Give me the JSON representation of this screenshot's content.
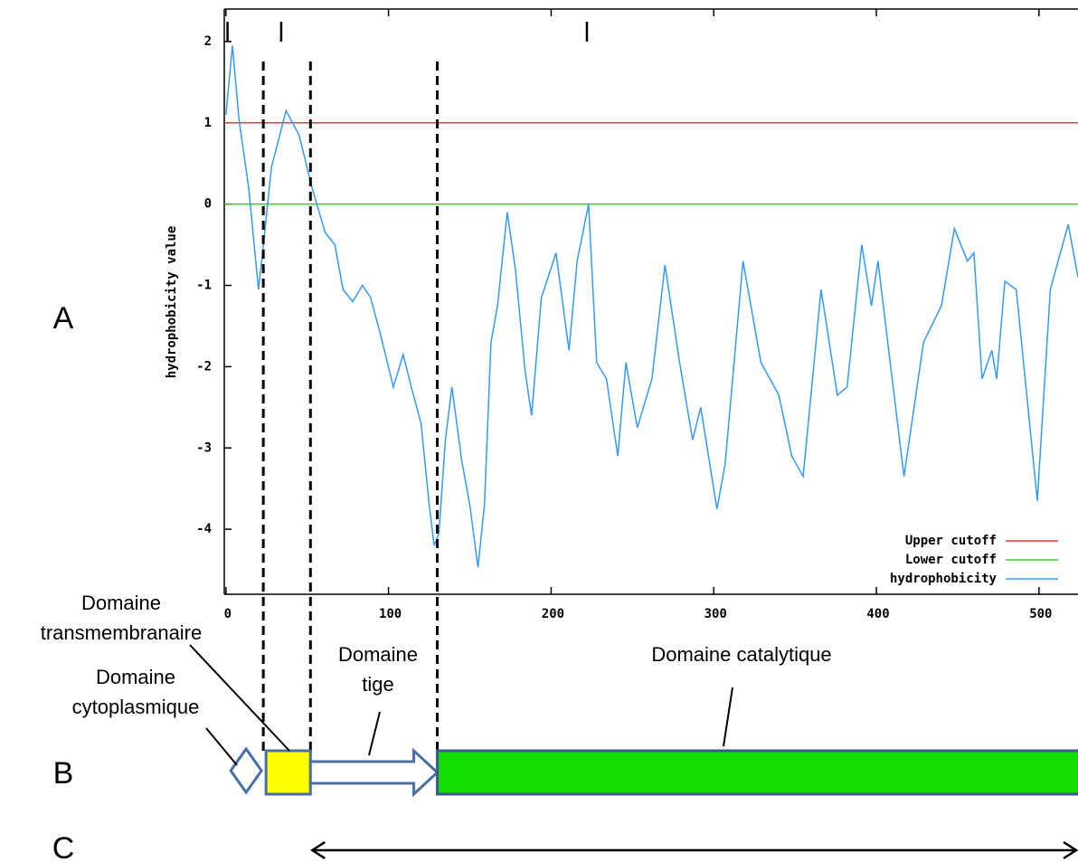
{
  "chart_data": {
    "type": "line",
    "ylabel": "hydrophobicity value",
    "x": [
      0,
      4,
      8,
      14,
      20,
      22,
      28,
      37,
      45,
      53,
      61,
      67,
      72,
      78,
      84,
      89,
      95,
      103,
      109,
      114,
      120,
      125,
      128,
      131,
      135,
      139,
      145,
      150,
      155,
      159,
      163,
      167,
      173,
      178,
      184,
      188,
      194,
      203,
      211,
      216,
      223,
      228,
      234,
      241,
      246,
      253,
      262,
      270,
      279,
      287,
      292,
      302,
      307,
      318,
      329,
      340,
      348,
      355,
      366,
      376,
      382,
      391,
      397,
      401,
      407,
      417,
      429,
      440,
      448,
      456,
      460,
      465,
      471,
      474,
      479,
      486,
      499,
      507,
      518,
      524
    ],
    "series": [
      {
        "name": "hydrophobicity",
        "color": "#3399ff",
        "values": [
          1.1,
          1.95,
          1.05,
          0.2,
          -1.05,
          -0.7,
          0.45,
          1.15,
          0.85,
          0.2,
          -0.35,
          -0.5,
          -1.05,
          -1.2,
          -1,
          -1.15,
          -1.6,
          -2.25,
          -1.85,
          -2.25,
          -2.7,
          -3.7,
          -4.2,
          -4.05,
          -2.9,
          -2.25,
          -3.15,
          -3.7,
          -4.47,
          -3.7,
          -1.7,
          -1.25,
          -0.1,
          -0.8,
          -2.05,
          -2.6,
          -1.15,
          -0.6,
          -1.8,
          -0.7,
          0,
          -1.95,
          -2.15,
          -3.1,
          -1.95,
          -2.75,
          -2.15,
          -0.75,
          -1.95,
          -2.9,
          -2.5,
          -3.75,
          -3.2,
          -0.7,
          -1.95,
          -2.35,
          -3.1,
          -3.35,
          -1.05,
          -2.35,
          -2.25,
          -0.5,
          -1.25,
          -0.7,
          -1.7,
          -3.35,
          -1.7,
          -1.25,
          -0.3,
          -0.7,
          -0.6,
          -2.15,
          -1.8,
          -2.15,
          -0.95,
          -1.05,
          -3.65,
          -1.05,
          -0.25,
          -0.9
        ]
      }
    ],
    "cutoffs": [
      {
        "name": "Upper cutoff",
        "color": "#ff3333",
        "value": 1
      },
      {
        "name": "Lower cutoff",
        "color": "#33cc33",
        "value": 0
      }
    ],
    "xlim": [
      -1,
      524
    ],
    "ylim": [
      -4.8,
      2.4
    ],
    "xticks": [
      0,
      100,
      200,
      300,
      400,
      500
    ],
    "yticks": [
      -4,
      -3,
      -2,
      -1,
      0,
      1,
      2
    ],
    "markers": [
      1,
      34,
      222
    ],
    "boundaries": [
      23,
      52,
      130
    ],
    "legend": "lower right"
  },
  "panels": [
    "A",
    "B",
    "C"
  ],
  "domains": [
    {
      "label": [
        "Domaine",
        "cytoplasmique"
      ]
    },
    {
      "label": [
        "Domaine",
        "transmembranaire"
      ]
    },
    {
      "label": [
        "Domaine",
        "tige"
      ]
    },
    {
      "label": [
        "Domaine catalytique"
      ]
    }
  ]
}
